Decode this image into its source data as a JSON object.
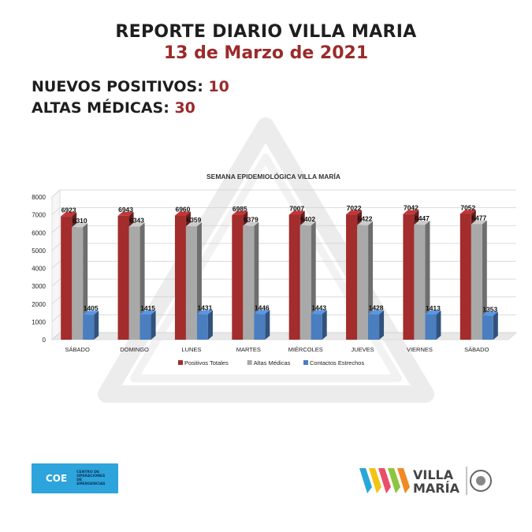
{
  "header": {
    "title": "REPORTE DIARIO VILLA MARIA",
    "date": "13 de Marzo de 2021"
  },
  "stats": {
    "nuevos_label": "NUEVOS POSITIVOS:",
    "nuevos_value": "10",
    "altas_label": "ALTAS MÉDICAS:",
    "altas_value": "30"
  },
  "chart_data": {
    "type": "bar",
    "title": "SEMANA EPIDEMIOLÓGICA VILLA MARÍA",
    "categories": [
      "SÁBADO",
      "DOMINGO",
      "LUNES",
      "MARTES",
      "MIÉRCOLES",
      "JUEVES",
      "VIERNES",
      "SÁBADO"
    ],
    "series": [
      {
        "name": "Positivos Totales",
        "values": [
          6923,
          6943,
          6960,
          6985,
          7007,
          7022,
          7042,
          7052
        ]
      },
      {
        "name": "Altas Médicas",
        "values": [
          6310,
          6343,
          6359,
          6379,
          6402,
          6422,
          6447,
          6477
        ]
      },
      {
        "name": "Contactos Estrechos",
        "values": [
          1405,
          1415,
          1431,
          1446,
          1443,
          1428,
          1413,
          1353
        ]
      }
    ],
    "ylim": [
      0,
      8000
    ],
    "yticks": [
      0,
      1000,
      2000,
      3000,
      4000,
      5000,
      6000,
      7000,
      8000
    ],
    "grid": true,
    "legend": "bottom",
    "colors": [
      "#a32c2c",
      "#a9a9a9",
      "#4a7ebf"
    ]
  },
  "logos": {
    "coe": "COE",
    "coe_subtitle": "CENTRO DE OPERACIONES DE EMERGENCIAS",
    "vm_line1": "VILLA",
    "vm_line2": "MARÍA"
  }
}
